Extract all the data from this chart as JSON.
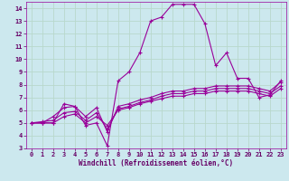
{
  "bg_color": "#cce8ee",
  "line_color": "#990099",
  "grid_color": "#b8d8cc",
  "xlabel": "Windchill (Refroidissement éolien,°C)",
  "xlabel_color": "#660066",
  "tick_color": "#660066",
  "xlim": [
    -0.5,
    23.5
  ],
  "ylim": [
    3,
    14.5
  ],
  "xticks": [
    0,
    1,
    2,
    3,
    4,
    5,
    6,
    7,
    8,
    9,
    10,
    11,
    12,
    13,
    14,
    15,
    16,
    17,
    18,
    19,
    20,
    21,
    22,
    23
  ],
  "yticks": [
    3,
    4,
    5,
    6,
    7,
    8,
    9,
    10,
    11,
    12,
    13,
    14
  ],
  "curve1_x": [
    0,
    1,
    2,
    3,
    4,
    5,
    6,
    7,
    8,
    9,
    10,
    11,
    12,
    13,
    14,
    15,
    16,
    17,
    18,
    19,
    20,
    21,
    22,
    23
  ],
  "curve1_y": [
    5.0,
    5.0,
    5.0,
    6.5,
    6.3,
    4.8,
    5.0,
    3.2,
    8.3,
    9.0,
    10.5,
    13.0,
    13.3,
    14.3,
    14.3,
    14.3,
    12.8,
    9.5,
    10.5,
    8.5,
    8.5,
    7.0,
    7.2,
    8.3
  ],
  "curve2_x": [
    0,
    1,
    2,
    3,
    4,
    5,
    6,
    7,
    8,
    9,
    10,
    11,
    12,
    13,
    14,
    15,
    16,
    17,
    18,
    19,
    20,
    21,
    22,
    23
  ],
  "curve2_y": [
    5.0,
    5.0,
    5.5,
    6.2,
    6.3,
    5.5,
    6.2,
    4.3,
    6.3,
    6.5,
    6.8,
    7.0,
    7.3,
    7.5,
    7.5,
    7.7,
    7.7,
    7.9,
    7.9,
    7.9,
    7.9,
    7.7,
    7.5,
    8.2
  ],
  "curve3_x": [
    0,
    1,
    2,
    3,
    4,
    5,
    6,
    7,
    8,
    9,
    10,
    11,
    12,
    13,
    14,
    15,
    16,
    17,
    18,
    19,
    20,
    21,
    22,
    23
  ],
  "curve3_y": [
    5.0,
    5.1,
    5.2,
    5.8,
    5.9,
    5.2,
    5.8,
    4.5,
    6.1,
    6.3,
    6.6,
    6.8,
    7.1,
    7.3,
    7.3,
    7.5,
    7.5,
    7.7,
    7.7,
    7.7,
    7.7,
    7.5,
    7.3,
    7.9
  ],
  "curve4_x": [
    0,
    1,
    2,
    3,
    4,
    5,
    6,
    7,
    8,
    9,
    10,
    11,
    12,
    13,
    14,
    15,
    16,
    17,
    18,
    19,
    20,
    21,
    22,
    23
  ],
  "curve4_y": [
    5.0,
    5.0,
    5.0,
    5.5,
    5.7,
    5.0,
    5.5,
    4.8,
    6.0,
    6.2,
    6.5,
    6.7,
    6.9,
    7.1,
    7.1,
    7.3,
    7.3,
    7.5,
    7.5,
    7.5,
    7.5,
    7.3,
    7.1,
    7.7
  ]
}
